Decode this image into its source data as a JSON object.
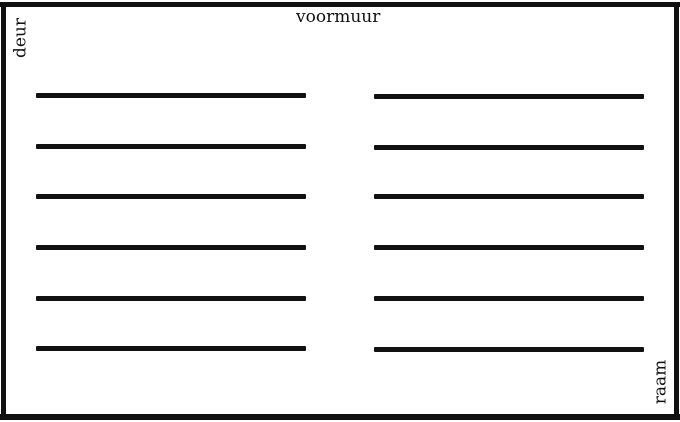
{
  "labels": {
    "top": "voormuur",
    "left": "deur",
    "right": "raam"
  },
  "benches": {
    "left_column": [
      "bench",
      "bench",
      "bench",
      "bench",
      "bench",
      "bench"
    ],
    "right_column": [
      "bench",
      "bench",
      "bench",
      "bench",
      "bench",
      "bench"
    ]
  }
}
